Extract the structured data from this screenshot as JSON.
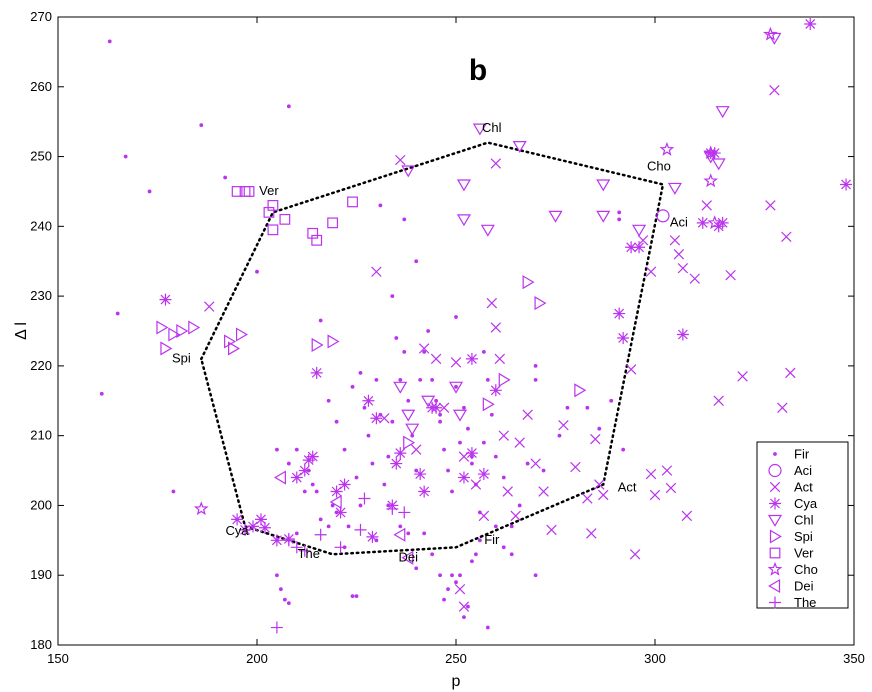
{
  "chart_data": {
    "type": "scatter",
    "title": "b",
    "xlabel": "p",
    "ylabel": "Δ l",
    "xlim": [
      150,
      350
    ],
    "ylim": [
      180,
      270
    ],
    "xticks": [
      150,
      200,
      250,
      300,
      350
    ],
    "yticks": [
      180,
      190,
      200,
      210,
      220,
      230,
      240,
      250,
      260,
      270
    ],
    "grid": false,
    "legend_position": "bottom-right",
    "color": "#bb33ee",
    "polygon": {
      "style": "dotted",
      "points": [
        [
          186,
          221
        ],
        [
          204,
          242
        ],
        [
          258,
          252
        ],
        [
          302,
          246
        ],
        [
          287,
          203
        ],
        [
          250,
          194
        ],
        [
          219,
          193
        ],
        [
          197,
          197
        ],
        [
          186,
          221
        ]
      ]
    },
    "annotations": [
      {
        "text": "Chl",
        "x": 259,
        "y": 253.5
      },
      {
        "text": "Cho",
        "x": 301,
        "y": 248
      },
      {
        "text": "Ver",
        "x": 203,
        "y": 244.5
      },
      {
        "text": "Aci",
        "x": 306,
        "y": 240
      },
      {
        "text": "Spi",
        "x": 181,
        "y": 220.5
      },
      {
        "text": "Act",
        "x": 293,
        "y": 202
      },
      {
        "text": "Cya",
        "x": 195,
        "y": 195.8
      },
      {
        "text": "The",
        "x": 213,
        "y": 192.5
      },
      {
        "text": "Dei",
        "x": 238,
        "y": 192
      },
      {
        "text": "Fir",
        "x": 259,
        "y": 194.5
      }
    ],
    "series": [
      {
        "name": "Fir",
        "marker": "dot",
        "points": [
          [
            163,
            266.5
          ],
          [
            167,
            250
          ],
          [
            173,
            245
          ],
          [
            186,
            254.5
          ],
          [
            208,
            257.2
          ],
          [
            192,
            247
          ],
          [
            165,
            227.5
          ],
          [
            161,
            216
          ],
          [
            179,
            202
          ],
          [
            200,
            233.5
          ],
          [
            205,
            208
          ],
          [
            208,
            206
          ],
          [
            210,
            208
          ],
          [
            213,
            205
          ],
          [
            215,
            202
          ],
          [
            216,
            226.5
          ],
          [
            218,
            215
          ],
          [
            220,
            212
          ],
          [
            222,
            208
          ],
          [
            222,
            203
          ],
          [
            224,
            217
          ],
          [
            225,
            204
          ],
          [
            226,
            219
          ],
          [
            228,
            210
          ],
          [
            229,
            206
          ],
          [
            230,
            218
          ],
          [
            231,
            213
          ],
          [
            232,
            203
          ],
          [
            233,
            207
          ],
          [
            234,
            212
          ],
          [
            235,
            224
          ],
          [
            236,
            218
          ],
          [
            237,
            222
          ],
          [
            238,
            215
          ],
          [
            239,
            210
          ],
          [
            240,
            205
          ],
          [
            241,
            218
          ],
          [
            242,
            222
          ],
          [
            243,
            225
          ],
          [
            244,
            218
          ],
          [
            245,
            215
          ],
          [
            246,
            212
          ],
          [
            247,
            208
          ],
          [
            248,
            205
          ],
          [
            249,
            202
          ],
          [
            250,
            217
          ],
          [
            251,
            209
          ],
          [
            252,
            214
          ],
          [
            253,
            211
          ],
          [
            254,
            206
          ],
          [
            255,
            203
          ],
          [
            256,
            199
          ],
          [
            257,
            209
          ],
          [
            258,
            218
          ],
          [
            259,
            213
          ],
          [
            260,
            207
          ],
          [
            262,
            204
          ],
          [
            264,
            197
          ],
          [
            266,
            200
          ],
          [
            268,
            206
          ],
          [
            270,
            220
          ],
          [
            270,
            218
          ],
          [
            272,
            205
          ],
          [
            276,
            210
          ],
          [
            278,
            214
          ],
          [
            283,
            214
          ],
          [
            286,
            211
          ],
          [
            289,
            215
          ],
          [
            291,
            241
          ],
          [
            291,
            242
          ],
          [
            292,
            208
          ],
          [
            231,
            243
          ],
          [
            237,
            241
          ],
          [
            218,
            197
          ],
          [
            220,
            199
          ],
          [
            222,
            194
          ],
          [
            224,
            187
          ],
          [
            225,
            187
          ],
          [
            226,
            200
          ],
          [
            230,
            195
          ],
          [
            233,
            200
          ],
          [
            236,
            197
          ],
          [
            238,
            196
          ],
          [
            240,
            191
          ],
          [
            242,
            196
          ],
          [
            244,
            193
          ],
          [
            246,
            190
          ],
          [
            247,
            186.5
          ],
          [
            248,
            188
          ],
          [
            249,
            190
          ],
          [
            250,
            189
          ],
          [
            251,
            190
          ],
          [
            252,
            184
          ],
          [
            253,
            185.5
          ],
          [
            254,
            192
          ],
          [
            255,
            193
          ],
          [
            256,
            195
          ],
          [
            258,
            182.5
          ],
          [
            260,
            197
          ],
          [
            262,
            194
          ],
          [
            264,
            193
          ],
          [
            270,
            190
          ],
          [
            205,
            190
          ],
          [
            206,
            188
          ],
          [
            207,
            186.5
          ],
          [
            208,
            186
          ],
          [
            210,
            196
          ],
          [
            212,
            202
          ],
          [
            214,
            203
          ],
          [
            216,
            198
          ],
          [
            219,
            200
          ],
          [
            223,
            197
          ],
          [
            227,
            214
          ],
          [
            234,
            230
          ],
          [
            240,
            235
          ],
          [
            246,
            213
          ],
          [
            250,
            227
          ],
          [
            254,
            207
          ],
          [
            257,
            222
          ]
        ]
      },
      {
        "name": "Aci",
        "marker": "circle",
        "points": [
          [
            302,
            241.5
          ]
        ]
      },
      {
        "name": "Act",
        "marker": "x",
        "points": [
          [
            188,
            228.5
          ],
          [
            230,
            233.5
          ],
          [
            236,
            249.5
          ],
          [
            242,
            222.5
          ],
          [
            245,
            221
          ],
          [
            250,
            220.5
          ],
          [
            252,
            207
          ],
          [
            255,
            203
          ],
          [
            257,
            198.5
          ],
          [
            259,
            229
          ],
          [
            260,
            225.5
          ],
          [
            261,
            221
          ],
          [
            262,
            210
          ],
          [
            263,
            202
          ],
          [
            265,
            198.5
          ],
          [
            266,
            209
          ],
          [
            268,
            213
          ],
          [
            270,
            206
          ],
          [
            272,
            202
          ],
          [
            274,
            196.5
          ],
          [
            277,
            211.5
          ],
          [
            280,
            205.5
          ],
          [
            283,
            201
          ],
          [
            284,
            196
          ],
          [
            285,
            209.5
          ],
          [
            286,
            203
          ],
          [
            287,
            201.5
          ],
          [
            294,
            219.5
          ],
          [
            295,
            193
          ],
          [
            297,
            238
          ],
          [
            299,
            233.5
          ],
          [
            299,
            204.5
          ],
          [
            300,
            201.5
          ],
          [
            303,
            205
          ],
          [
            304,
            202.5
          ],
          [
            305,
            238
          ],
          [
            306,
            236
          ],
          [
            307,
            234
          ],
          [
            308,
            198.5
          ],
          [
            310,
            232.5
          ],
          [
            313,
            243
          ],
          [
            316,
            215
          ],
          [
            319,
            233
          ],
          [
            322,
            218.5
          ],
          [
            329,
            243
          ],
          [
            330,
            259.5
          ],
          [
            332,
            214
          ],
          [
            333,
            238.5
          ],
          [
            334,
            219
          ],
          [
            232,
            212.5
          ],
          [
            240,
            208
          ],
          [
            247,
            214
          ],
          [
            251,
            188
          ],
          [
            252,
            185.5
          ],
          [
            260,
            249
          ]
        ]
      },
      {
        "name": "Cya",
        "marker": "asterisk",
        "points": [
          [
            177,
            229.5
          ],
          [
            195,
            198
          ],
          [
            197,
            196.5
          ],
          [
            199,
            197
          ],
          [
            201,
            198
          ],
          [
            202,
            196.8
          ],
          [
            205,
            195
          ],
          [
            208,
            195.2
          ],
          [
            210,
            204
          ],
          [
            212,
            205
          ],
          [
            213,
            206.5
          ],
          [
            214,
            207
          ],
          [
            220,
            202
          ],
          [
            221,
            199
          ],
          [
            222,
            203
          ],
          [
            229,
            195.5
          ],
          [
            230,
            212.5
          ],
          [
            234,
            200
          ],
          [
            235,
            206
          ],
          [
            236,
            207.5
          ],
          [
            241,
            204.5
          ],
          [
            242,
            202
          ],
          [
            244,
            214
          ],
          [
            245,
            214
          ],
          [
            252,
            204
          ],
          [
            254,
            207.5
          ],
          [
            254,
            221
          ],
          [
            257,
            204.5
          ],
          [
            260,
            216.5
          ],
          [
            291,
            227.5
          ],
          [
            292,
            224
          ],
          [
            294,
            237
          ],
          [
            296,
            237
          ],
          [
            307,
            224.5
          ],
          [
            312,
            240.5
          ],
          [
            314,
            250.5
          ],
          [
            315,
            250.5
          ],
          [
            316,
            240
          ],
          [
            317,
            240.5
          ],
          [
            339,
            269
          ],
          [
            348,
            246
          ],
          [
            215,
            219
          ],
          [
            228,
            215
          ]
        ]
      },
      {
        "name": "Chl",
        "marker": "triangle-down",
        "points": [
          [
            256,
            254
          ],
          [
            266,
            251.5
          ],
          [
            238,
            248
          ],
          [
            252,
            246
          ],
          [
            252,
            241
          ],
          [
            258,
            239.5
          ],
          [
            275,
            241.5
          ],
          [
            287,
            241.5
          ],
          [
            287,
            246
          ],
          [
            296,
            239.5
          ],
          [
            305,
            245.5
          ],
          [
            314,
            250
          ],
          [
            316,
            249
          ],
          [
            317,
            256.5
          ],
          [
            330,
            267
          ],
          [
            236,
            217
          ],
          [
            238,
            213
          ],
          [
            239,
            211
          ],
          [
            243,
            215
          ],
          [
            250,
            217
          ],
          [
            251,
            213
          ]
        ]
      },
      {
        "name": "Spi",
        "marker": "triangle-right",
        "points": [
          [
            176,
            225.5
          ],
          [
            177,
            222.5
          ],
          [
            179,
            224.5
          ],
          [
            181,
            225
          ],
          [
            184,
            225.5
          ],
          [
            193,
            223.5
          ],
          [
            194,
            222.5
          ],
          [
            196,
            224.5
          ],
          [
            215,
            223
          ],
          [
            219,
            223.5
          ],
          [
            238,
            209
          ],
          [
            258,
            214.5
          ],
          [
            262,
            218
          ],
          [
            268,
            232
          ],
          [
            271,
            229
          ],
          [
            281,
            216.5
          ]
        ]
      },
      {
        "name": "Ver",
        "marker": "square",
        "points": [
          [
            195,
            245
          ],
          [
            197,
            245
          ],
          [
            198,
            245
          ],
          [
            203,
            242
          ],
          [
            204,
            243
          ],
          [
            204,
            239.5
          ],
          [
            207,
            241
          ],
          [
            214,
            239
          ],
          [
            215,
            238
          ],
          [
            219,
            240.5
          ],
          [
            224,
            243.5
          ]
        ]
      },
      {
        "name": "Cho",
        "marker": "star",
        "points": [
          [
            186,
            199.5
          ],
          [
            303,
            251
          ],
          [
            314,
            250.5
          ],
          [
            314,
            246.5
          ],
          [
            315,
            240.5
          ],
          [
            329,
            267.5
          ]
        ]
      },
      {
        "name": "Dei",
        "marker": "triangle-left",
        "points": [
          [
            206,
            204
          ],
          [
            220,
            200.5
          ],
          [
            236,
            195.8
          ],
          [
            238,
            192.5
          ]
        ]
      },
      {
        "name": "The",
        "marker": "plus",
        "points": [
          [
            205,
            182.5
          ],
          [
            208,
            195
          ],
          [
            210,
            194
          ],
          [
            212,
            193.5
          ],
          [
            216,
            195.8
          ],
          [
            221,
            194
          ],
          [
            226,
            196.5
          ],
          [
            227,
            201
          ],
          [
            234,
            199.5
          ],
          [
            237,
            199
          ]
        ]
      }
    ]
  }
}
